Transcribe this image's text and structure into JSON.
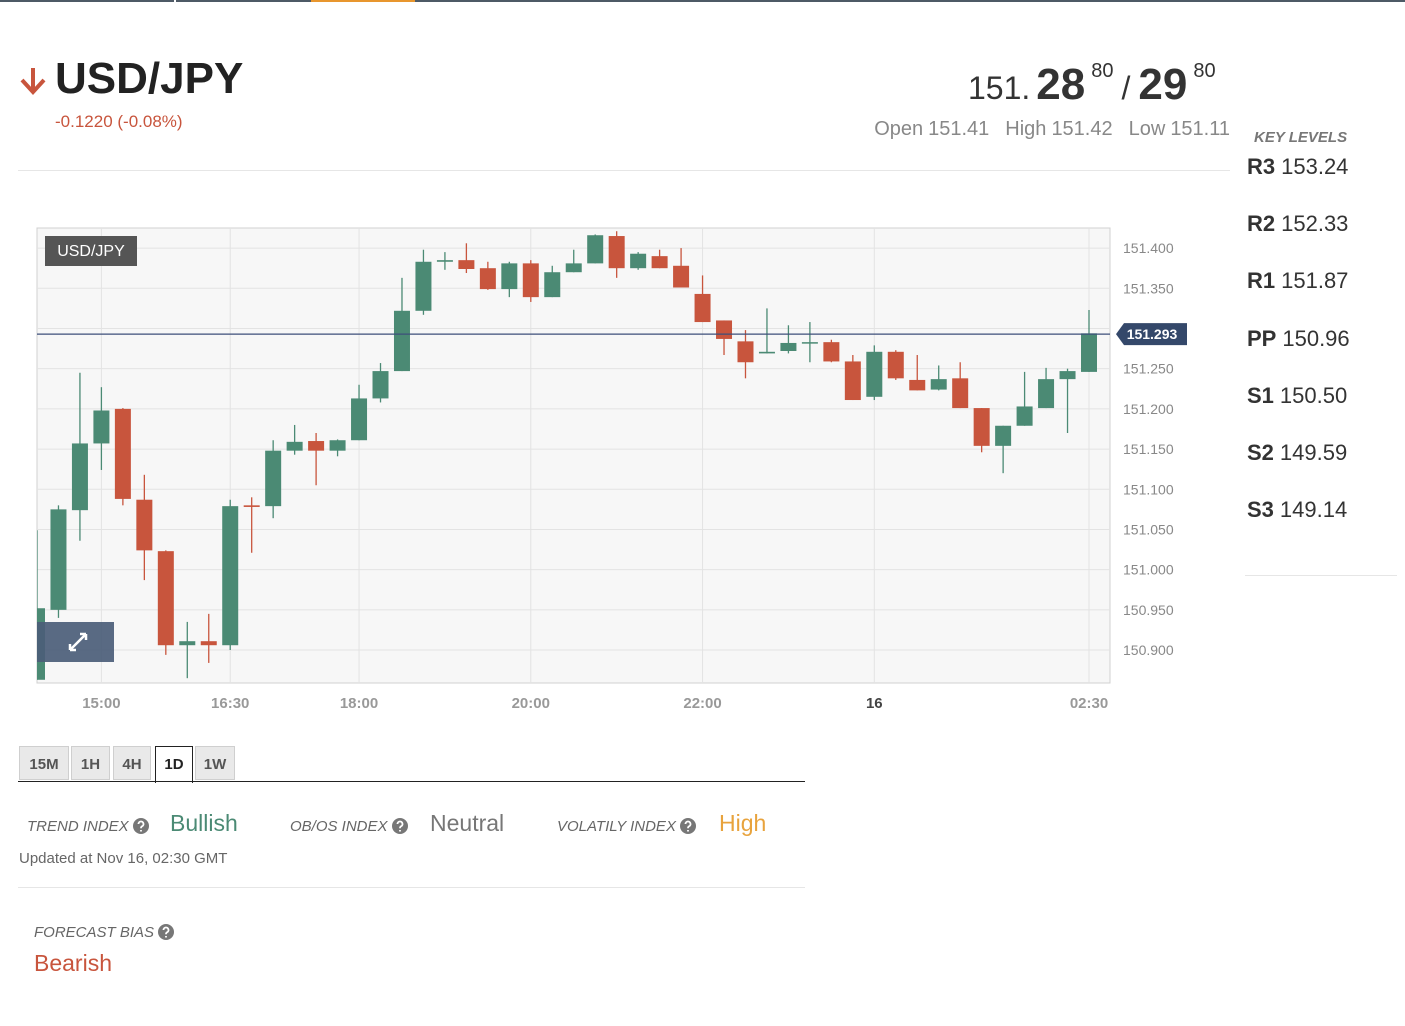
{
  "header": {
    "symbol": "USD/JPY",
    "change": "-0.1220 (-0.08%)",
    "quote": {
      "big": "151.",
      "bid_pips": "28",
      "bid_fraction": "80",
      "separator": "/",
      "ask_pips": "29",
      "ask_fraction": "80"
    },
    "ohlc": [
      {
        "label": "Open",
        "value": "151.41"
      },
      {
        "label": "High",
        "value": "151.42"
      },
      {
        "label": "Low",
        "value": "151.11"
      }
    ]
  },
  "key_levels": {
    "title": "KEY LEVELS",
    "levels": [
      {
        "label": "R3",
        "value": "153.24"
      },
      {
        "label": "R2",
        "value": "152.33"
      },
      {
        "label": "R1",
        "value": "151.87"
      },
      {
        "label": "PP",
        "value": "150.96"
      },
      {
        "label": "S1",
        "value": "150.50"
      },
      {
        "label": "S2",
        "value": "149.59"
      },
      {
        "label": "S3",
        "value": "149.14"
      }
    ]
  },
  "chart_data": {
    "type": "candlestick",
    "title": "USD/JPY",
    "categories": [
      null,
      null,
      null,
      "15:00",
      null,
      null,
      null,
      null,
      null,
      "16:30",
      null,
      null,
      null,
      null,
      null,
      "18:00",
      null,
      null,
      null,
      null,
      null,
      null,
      null,
      "20:00",
      null,
      null,
      null,
      null,
      null,
      null,
      null,
      "22:00",
      null,
      null,
      null,
      null,
      null,
      null,
      null,
      "16",
      null,
      null,
      null,
      null,
      null,
      null,
      null,
      null,
      null,
      "02:30"
    ],
    "open": [
      150.863,
      150.95,
      151.074,
      151.157,
      151.2,
      151.087,
      151.023,
      150.906,
      150.911,
      150.906,
      151.08,
      151.079,
      151.148,
      151.16,
      151.148,
      151.161,
      151.213,
      151.247,
      151.322,
      151.383,
      151.385,
      151.375,
      151.349,
      151.381,
      151.339,
      151.37,
      151.381,
      151.415,
      151.375,
      151.39,
      151.378,
      151.343,
      151.31,
      151.284,
      151.269,
      151.272,
      151.282,
      151.283,
      151.259,
      151.215,
      151.271,
      151.236,
      151.224,
      151.238,
      151.201,
      151.154,
      151.179,
      151.201,
      151.237,
      151.246
    ],
    "high": [
      151.049,
      151.08,
      151.245,
      151.227,
      151.201,
      151.118,
      151.024,
      150.935,
      150.945,
      151.087,
      151.09,
      151.161,
      151.18,
      151.17,
      151.162,
      151.23,
      151.257,
      151.363,
      151.398,
      151.395,
      151.406,
      151.383,
      151.383,
      151.385,
      151.378,
      151.398,
      151.417,
      151.421,
      151.395,
      151.398,
      151.4,
      151.366,
      151.31,
      151.298,
      151.325,
      151.304,
      151.308,
      151.286,
      151.267,
      151.279,
      151.273,
      151.267,
      151.254,
      151.258,
      151.201,
      151.179,
      151.246,
      151.251,
      151.25,
      151.323
    ],
    "low": [
      150.863,
      150.94,
      151.036,
      151.124,
      151.08,
      150.987,
      150.894,
      150.865,
      150.884,
      150.9,
      151.021,
      151.064,
      151.143,
      151.105,
      151.141,
      151.161,
      151.208,
      151.247,
      151.317,
      151.373,
      151.369,
      151.348,
      151.339,
      151.333,
      151.339,
      151.37,
      151.381,
      151.363,
      151.373,
      151.375,
      151.351,
      151.308,
      151.267,
      151.238,
      151.269,
      151.269,
      151.258,
      151.258,
      151.211,
      151.211,
      151.236,
      151.223,
      151.223,
      151.201,
      151.146,
      151.12,
      151.179,
      151.201,
      151.17,
      151.246
    ],
    "close": [
      150.952,
      151.075,
      151.157,
      151.198,
      151.088,
      151.024,
      150.906,
      150.911,
      150.906,
      151.079,
      151.078,
      151.148,
      151.159,
      151.148,
      151.161,
      151.213,
      151.247,
      151.322,
      151.383,
      151.385,
      151.374,
      151.349,
      151.381,
      151.339,
      151.37,
      151.381,
      151.416,
      151.375,
      151.393,
      151.375,
      151.351,
      151.308,
      151.287,
      151.258,
      151.271,
      151.282,
      151.283,
      151.259,
      151.211,
      151.271,
      151.238,
      151.223,
      151.237,
      151.201,
      151.154,
      151.179,
      151.203,
      151.237,
      151.247,
      151.294
    ],
    "up_color": "#4b8a74",
    "down_color": "#c8553d",
    "ylim": [
      150.859,
      151.425
    ],
    "yticks": [
      {
        "value": 150.9,
        "label": "150.900"
      },
      {
        "value": 150.95,
        "label": "150.950"
      },
      {
        "value": 151,
        "label": "151.000"
      },
      {
        "value": 151.05,
        "label": "151.050"
      },
      {
        "value": 151.1,
        "label": "151.100"
      },
      {
        "value": 151.15,
        "label": "151.150"
      },
      {
        "value": 151.2,
        "label": "151.200"
      },
      {
        "value": 151.25,
        "label": "151.250"
      },
      {
        "value": 151.3,
        "label": "151.300"
      },
      {
        "value": 151.35,
        "label": "151.350"
      },
      {
        "value": 151.4,
        "label": "151.400"
      }
    ],
    "last_price": 151.293,
    "grid": true
  },
  "timeframes": [
    "15M",
    "1H",
    "4H",
    "1D",
    "1W"
  ],
  "indices": [
    {
      "label": "TREND INDEX",
      "value": "Bullish"
    },
    {
      "label": "OB/OS INDEX",
      "value": "Neutral"
    },
    {
      "label": "VOLATILY INDEX",
      "value": "High"
    }
  ],
  "updated": "Updated at Nov 16, 02:30 GMT",
  "forecast": {
    "label": "FORECAST BIAS",
    "value": "Bearish"
  }
}
